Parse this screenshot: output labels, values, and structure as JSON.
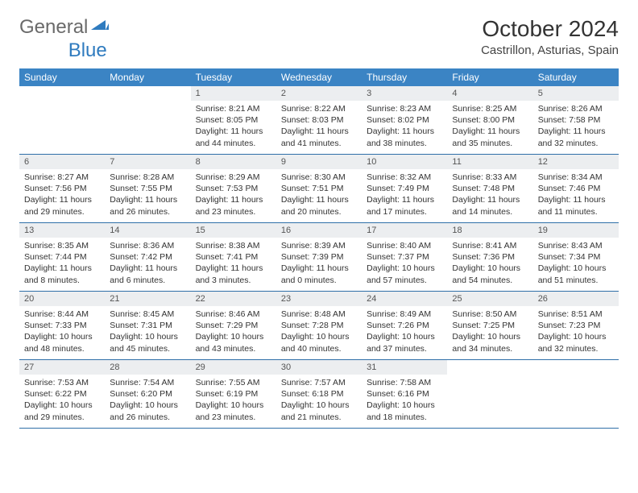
{
  "brand": {
    "part1": "General",
    "part2": "Blue"
  },
  "title": "October 2024",
  "location": "Castrillon, Asturias, Spain",
  "colors": {
    "header_bg": "#3b84c4",
    "header_text": "#ffffff",
    "daynum_bg": "#eceef0",
    "row_border": "#2f6fa8",
    "logo_blue": "#2f7bbf",
    "logo_gray": "#6a6a6a"
  },
  "weekdays": [
    "Sunday",
    "Monday",
    "Tuesday",
    "Wednesday",
    "Thursday",
    "Friday",
    "Saturday"
  ],
  "weeks": [
    [
      null,
      null,
      {
        "n": "1",
        "sr": "8:21 AM",
        "ss": "8:05 PM",
        "dl": "11 hours and 44 minutes."
      },
      {
        "n": "2",
        "sr": "8:22 AM",
        "ss": "8:03 PM",
        "dl": "11 hours and 41 minutes."
      },
      {
        "n": "3",
        "sr": "8:23 AM",
        "ss": "8:02 PM",
        "dl": "11 hours and 38 minutes."
      },
      {
        "n": "4",
        "sr": "8:25 AM",
        "ss": "8:00 PM",
        "dl": "11 hours and 35 minutes."
      },
      {
        "n": "5",
        "sr": "8:26 AM",
        "ss": "7:58 PM",
        "dl": "11 hours and 32 minutes."
      }
    ],
    [
      {
        "n": "6",
        "sr": "8:27 AM",
        "ss": "7:56 PM",
        "dl": "11 hours and 29 minutes."
      },
      {
        "n": "7",
        "sr": "8:28 AM",
        "ss": "7:55 PM",
        "dl": "11 hours and 26 minutes."
      },
      {
        "n": "8",
        "sr": "8:29 AM",
        "ss": "7:53 PM",
        "dl": "11 hours and 23 minutes."
      },
      {
        "n": "9",
        "sr": "8:30 AM",
        "ss": "7:51 PM",
        "dl": "11 hours and 20 minutes."
      },
      {
        "n": "10",
        "sr": "8:32 AM",
        "ss": "7:49 PM",
        "dl": "11 hours and 17 minutes."
      },
      {
        "n": "11",
        "sr": "8:33 AM",
        "ss": "7:48 PM",
        "dl": "11 hours and 14 minutes."
      },
      {
        "n": "12",
        "sr": "8:34 AM",
        "ss": "7:46 PM",
        "dl": "11 hours and 11 minutes."
      }
    ],
    [
      {
        "n": "13",
        "sr": "8:35 AM",
        "ss": "7:44 PM",
        "dl": "11 hours and 8 minutes."
      },
      {
        "n": "14",
        "sr": "8:36 AM",
        "ss": "7:42 PM",
        "dl": "11 hours and 6 minutes."
      },
      {
        "n": "15",
        "sr": "8:38 AM",
        "ss": "7:41 PM",
        "dl": "11 hours and 3 minutes."
      },
      {
        "n": "16",
        "sr": "8:39 AM",
        "ss": "7:39 PM",
        "dl": "11 hours and 0 minutes."
      },
      {
        "n": "17",
        "sr": "8:40 AM",
        "ss": "7:37 PM",
        "dl": "10 hours and 57 minutes."
      },
      {
        "n": "18",
        "sr": "8:41 AM",
        "ss": "7:36 PM",
        "dl": "10 hours and 54 minutes."
      },
      {
        "n": "19",
        "sr": "8:43 AM",
        "ss": "7:34 PM",
        "dl": "10 hours and 51 minutes."
      }
    ],
    [
      {
        "n": "20",
        "sr": "8:44 AM",
        "ss": "7:33 PM",
        "dl": "10 hours and 48 minutes."
      },
      {
        "n": "21",
        "sr": "8:45 AM",
        "ss": "7:31 PM",
        "dl": "10 hours and 45 minutes."
      },
      {
        "n": "22",
        "sr": "8:46 AM",
        "ss": "7:29 PM",
        "dl": "10 hours and 43 minutes."
      },
      {
        "n": "23",
        "sr": "8:48 AM",
        "ss": "7:28 PM",
        "dl": "10 hours and 40 minutes."
      },
      {
        "n": "24",
        "sr": "8:49 AM",
        "ss": "7:26 PM",
        "dl": "10 hours and 37 minutes."
      },
      {
        "n": "25",
        "sr": "8:50 AM",
        "ss": "7:25 PM",
        "dl": "10 hours and 34 minutes."
      },
      {
        "n": "26",
        "sr": "8:51 AM",
        "ss": "7:23 PM",
        "dl": "10 hours and 32 minutes."
      }
    ],
    [
      {
        "n": "27",
        "sr": "7:53 AM",
        "ss": "6:22 PM",
        "dl": "10 hours and 29 minutes."
      },
      {
        "n": "28",
        "sr": "7:54 AM",
        "ss": "6:20 PM",
        "dl": "10 hours and 26 minutes."
      },
      {
        "n": "29",
        "sr": "7:55 AM",
        "ss": "6:19 PM",
        "dl": "10 hours and 23 minutes."
      },
      {
        "n": "30",
        "sr": "7:57 AM",
        "ss": "6:18 PM",
        "dl": "10 hours and 21 minutes."
      },
      {
        "n": "31",
        "sr": "7:58 AM",
        "ss": "6:16 PM",
        "dl": "10 hours and 18 minutes."
      },
      null,
      null
    ]
  ],
  "labels": {
    "sunrise": "Sunrise:",
    "sunset": "Sunset:",
    "daylight": "Daylight:"
  }
}
